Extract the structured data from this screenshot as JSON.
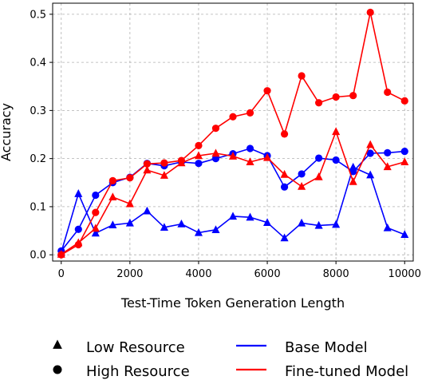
{
  "chart_data": {
    "type": "line",
    "title": "",
    "xlabel": "Test-Time Token Generation Length",
    "ylabel": "Accuracy",
    "xlim": [
      -250,
      10250
    ],
    "ylim": [
      -0.013,
      0.523
    ],
    "xticks": [
      0,
      2000,
      4000,
      6000,
      8000,
      10000
    ],
    "yticks": [
      0.0,
      0.1,
      0.2,
      0.3,
      0.4,
      0.5
    ],
    "grid": true,
    "legend_placement": "bottom",
    "x": [
      0,
      500,
      1000,
      1500,
      2000,
      2500,
      3000,
      3500,
      4000,
      4500,
      5000,
      5500,
      6000,
      6500,
      7000,
      7500,
      8000,
      8500,
      9000,
      9500,
      10000
    ],
    "series": [
      {
        "model": "Base Model",
        "resource": "Low Resource",
        "color": "#0000ff",
        "marker": "triangle",
        "values": [
          0.005,
          0.127,
          0.045,
          0.062,
          0.066,
          0.091,
          0.057,
          0.064,
          0.046,
          0.052,
          0.08,
          0.078,
          0.067,
          0.035,
          0.066,
          0.061,
          0.063,
          0.182,
          0.166,
          0.056,
          0.042
        ]
      },
      {
        "model": "Base Model",
        "resource": "High Resource",
        "color": "#0000ff",
        "marker": "circle",
        "values": [
          0.008,
          0.053,
          0.124,
          0.15,
          0.161,
          0.19,
          0.185,
          0.193,
          0.19,
          0.2,
          0.21,
          0.221,
          0.206,
          0.141,
          0.168,
          0.201,
          0.197,
          0.173,
          0.211,
          0.212,
          0.215
        ]
      },
      {
        "model": "Fine-tuned Model",
        "resource": "Low Resource",
        "color": "#ff0000",
        "marker": "triangle",
        "values": [
          0.001,
          0.025,
          0.055,
          0.12,
          0.106,
          0.176,
          0.165,
          0.191,
          0.206,
          0.211,
          0.205,
          0.193,
          0.202,
          0.167,
          0.142,
          0.162,
          0.256,
          0.152,
          0.229,
          0.183,
          0.193
        ]
      },
      {
        "model": "Fine-tuned Model",
        "resource": "High Resource",
        "color": "#ff0000",
        "marker": "circle",
        "values": [
          0.0,
          0.021,
          0.088,
          0.154,
          0.16,
          0.189,
          0.191,
          0.196,
          0.227,
          0.263,
          0.287,
          0.295,
          0.341,
          0.251,
          0.372,
          0.316,
          0.328,
          0.331,
          0.504,
          0.338,
          0.32
        ]
      }
    ],
    "legend": {
      "markers": [
        {
          "label": "Low Resource",
          "marker": "triangle"
        },
        {
          "label": "High Resource",
          "marker": "circle"
        }
      ],
      "lines": [
        {
          "label": "Base Model",
          "color": "#0000ff"
        },
        {
          "label": "Fine-tuned Model",
          "color": "#ff0000"
        }
      ]
    }
  }
}
